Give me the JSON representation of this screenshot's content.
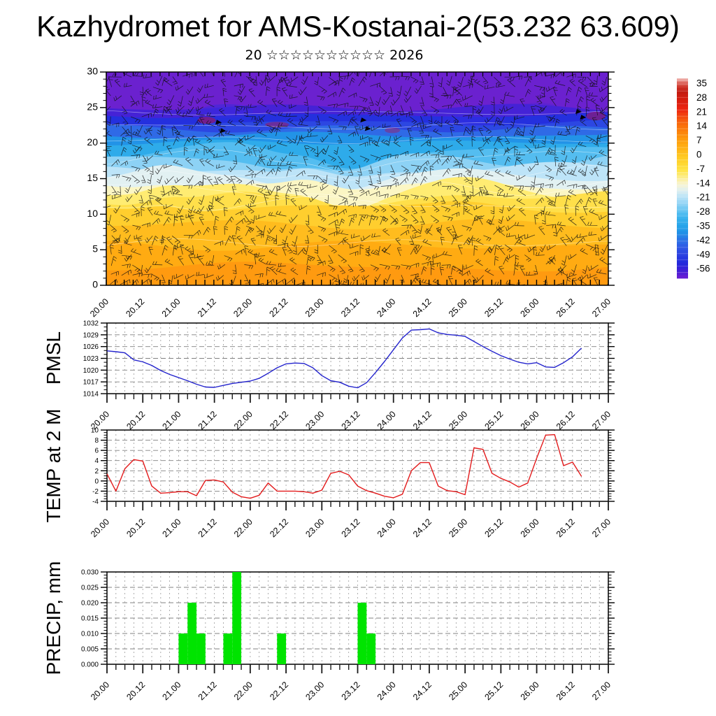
{
  "header": {
    "title": "Kazhydromet for AMS-Kostanai-2(53.232 63.609)",
    "subtitle": "20 ☆☆☆☆☆☆☆☆☆☆ 2026"
  },
  "time_axis": {
    "start_label": "20.00",
    "end_label": "27.00",
    "major_labels": [
      "20.00",
      "20.12",
      "21.00",
      "21.12",
      "22.00",
      "22.12",
      "23.00",
      "23.12",
      "24.00",
      "24.12",
      "25.00",
      "25.12",
      "26.00",
      "26.12",
      "27.00"
    ],
    "major_step_hours": 12,
    "minor_step_hours": 3,
    "total_hours": 168
  },
  "chart_data": [
    {
      "id": "profile",
      "type": "heatmap",
      "title": "Vertical profile: temperature shading with wind barbs vs time",
      "y_range": [
        0,
        30
      ],
      "y_tick_labels": [
        "0",
        "5",
        "10",
        "15",
        "20",
        "25",
        "30"
      ],
      "grid": false,
      "legend_position": "right-colorbar",
      "colorbar_tick_labels": [
        "35",
        "28",
        "21",
        "14",
        "7",
        "0",
        "-7",
        "-14",
        "-21",
        "-28",
        "-35",
        "-42",
        "-49",
        "-56"
      ],
      "colorbar_range": [
        35,
        -56
      ],
      "colorbar_stops": [
        {
          "v": 35,
          "c": "#f4c2bd"
        },
        {
          "v": 32,
          "c": "#d44439"
        },
        {
          "v": 29,
          "c": "#c21b10"
        },
        {
          "v": 25,
          "c": "#d81d0f"
        },
        {
          "v": 21,
          "c": "#ec2410"
        },
        {
          "v": 17,
          "c": "#f4510f"
        },
        {
          "v": 14,
          "c": "#f96c0c"
        },
        {
          "v": 10,
          "c": "#fc870a"
        },
        {
          "v": 7,
          "c": "#fe9d0c"
        },
        {
          "v": 3,
          "c": "#ffb317"
        },
        {
          "v": 0,
          "c": "#ffc622"
        },
        {
          "v": -4,
          "c": "#ffd833"
        },
        {
          "v": -7,
          "c": "#ffe54a"
        },
        {
          "v": -10,
          "c": "#fcee8f"
        },
        {
          "v": -13,
          "c": "#f9f4cf"
        },
        {
          "v": -15,
          "c": "#ebf3e8"
        },
        {
          "v": -18,
          "c": "#c6e7f6"
        },
        {
          "v": -21,
          "c": "#a0d9f6"
        },
        {
          "v": -25,
          "c": "#68c5f2"
        },
        {
          "v": -28,
          "c": "#3db4ee"
        },
        {
          "v": -32,
          "c": "#27a5ea"
        },
        {
          "v": -35,
          "c": "#1f93e7"
        },
        {
          "v": -38,
          "c": "#2b78e6"
        },
        {
          "v": -42,
          "c": "#3058e5"
        },
        {
          "v": -45,
          "c": "#2c42e1"
        },
        {
          "v": -49,
          "c": "#2129dc"
        },
        {
          "v": -52,
          "c": "#3a1fd7"
        },
        {
          "v": -56,
          "c": "#6e1ed2"
        }
      ],
      "bands_height_to_color": [
        {
          "top": 2.6,
          "color": "#ff9a10"
        },
        {
          "top": 5.6,
          "color": "#ffab12"
        },
        {
          "top": 8.6,
          "color": "#ffbc1e"
        },
        {
          "top": 10.9,
          "color": "#ffce2e"
        },
        {
          "top": 12.4,
          "color": "#ffdf4a"
        },
        {
          "top": 13.4,
          "color": "#ffec72"
        },
        {
          "top": 14.3,
          "color": "#fbf6c4"
        },
        {
          "top": 15.3,
          "color": "#e2f1f2"
        },
        {
          "top": 16.5,
          "color": "#bde4f8"
        },
        {
          "top": 17.7,
          "color": "#8dd2f5"
        },
        {
          "top": 18.9,
          "color": "#54bdf0"
        },
        {
          "top": 20.1,
          "color": "#2eabea"
        },
        {
          "top": 21.1,
          "color": "#2293e7"
        },
        {
          "top": 22.0,
          "color": "#2f6ae6"
        },
        {
          "top": 22.9,
          "color": "#2c47e2"
        },
        {
          "top": 23.9,
          "color": "#2430de"
        },
        {
          "top": 25.0,
          "color": "#4522d6"
        },
        {
          "top": 30,
          "color": "#6b21cf"
        }
      ]
    },
    {
      "id": "pmsl",
      "type": "line",
      "ylabel": "PMSL",
      "line_color": "#2323cd",
      "y_range": [
        1014,
        1032
      ],
      "y_tick_labels": [
        "1014",
        "1017",
        "1020",
        "1023",
        "1026",
        "1029",
        "1032"
      ],
      "grid": true,
      "series": {
        "start": "20.00",
        "step_hours": 3,
        "values": [
          1024.9,
          1024.7,
          1024.4,
          1022.6,
          1022.1,
          1021.2,
          1019.9,
          1018.9,
          1018.1,
          1017.3,
          1016.4,
          1015.7,
          1015.6,
          1016.1,
          1016.6,
          1016.9,
          1017.2,
          1017.9,
          1019.2,
          1020.6,
          1021.6,
          1021.8,
          1021.7,
          1020.6,
          1018.6,
          1017.3,
          1016.9,
          1015.9,
          1015.5,
          1016.8,
          1019.4,
          1022.2,
          1025.2,
          1028.2,
          1030.2,
          1030.3,
          1030.5,
          1029.5,
          1029.1,
          1028.9,
          1028.6,
          1027.3,
          1026.0,
          1024.8,
          1023.7,
          1022.8,
          1022.0,
          1021.6,
          1021.9,
          1020.8,
          1020.7,
          1021.9,
          1023.4,
          1025.6
        ]
      }
    },
    {
      "id": "temp2m",
      "type": "line",
      "ylabel": "TEMP at 2 M",
      "line_color": "#e31b1c",
      "y_range": [
        -4,
        10
      ],
      "y_tick_labels": [
        "-4",
        "-2",
        "0",
        "2",
        "4",
        "6",
        "8",
        "10"
      ],
      "grid": true,
      "series": {
        "start": "20.00",
        "step_hours": 3,
        "values": [
          1.4,
          -2.0,
          2.4,
          4.2,
          3.9,
          -1.0,
          -2.4,
          -2.3,
          -2.1,
          -2.1,
          -2.9,
          0.1,
          0.2,
          -0.2,
          -2.2,
          -3.1,
          -3.4,
          -2.8,
          -0.4,
          -2.0,
          -2.0,
          -2.0,
          -2.1,
          -2.4,
          -1.8,
          1.5,
          1.9,
          1.2,
          -1.0,
          -1.9,
          -2.4,
          -3.0,
          -3.3,
          -2.6,
          2.0,
          3.6,
          3.6,
          -1.0,
          -1.9,
          -2.1,
          -2.7,
          6.5,
          6.2,
          1.5,
          0.5,
          -0.2,
          -1.2,
          -0.4,
          4.5,
          9.0,
          9.1,
          3.0,
          3.7,
          0.9
        ]
      }
    },
    {
      "id": "precip",
      "type": "bar",
      "ylabel": "PRECIP, mm",
      "bar_color": "#00e400",
      "y_range": [
        0,
        0.03
      ],
      "y_tick_labels": [
        "0.000",
        "0.005",
        "0.010",
        "0.015",
        "0.020",
        "0.025",
        "0.030"
      ],
      "grid": true,
      "bar_width_hours": 3,
      "bars": [
        {
          "time": "21.00",
          "value": 0.01
        },
        {
          "time": "21.03",
          "value": 0.02
        },
        {
          "time": "21.06",
          "value": 0.01
        },
        {
          "time": "21.15",
          "value": 0.01
        },
        {
          "time": "21.18",
          "value": 0.03
        },
        {
          "time": "22.09",
          "value": 0.01
        },
        {
          "time": "23.12",
          "value": 0.02
        },
        {
          "time": "23.15",
          "value": 0.01
        }
      ]
    }
  ]
}
